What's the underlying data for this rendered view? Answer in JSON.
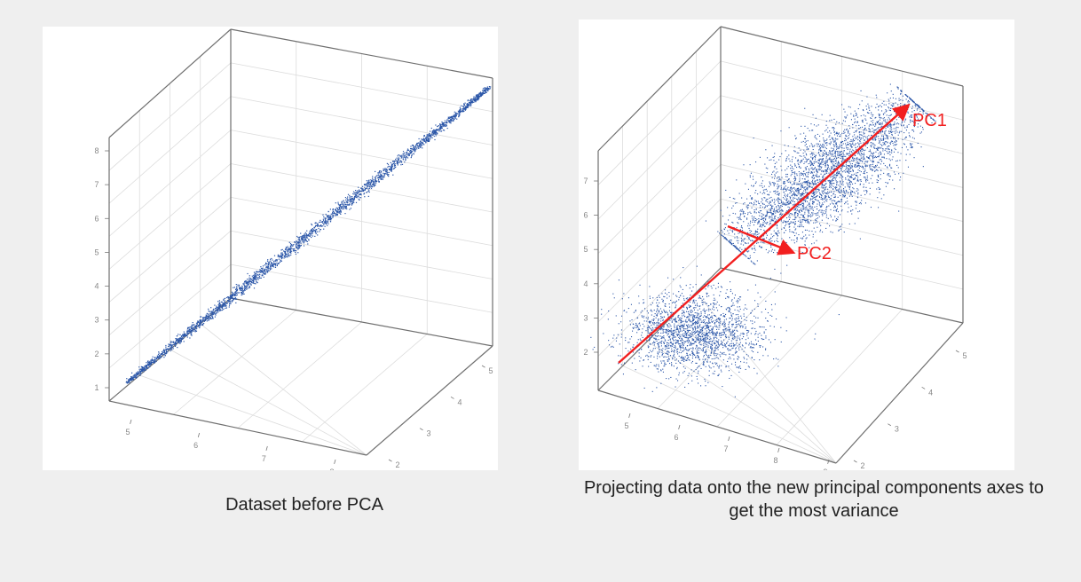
{
  "captions": {
    "left": "Dataset before PCA",
    "right": "Projecting data onto the new principal components axes to get the most variance"
  },
  "colors": {
    "points": "#2b56a8",
    "arrows": "#f21f1f",
    "grid": "#dcdcdc",
    "box": "#6f6f6f"
  },
  "chart_data": [
    {
      "type": "scatter",
      "subtype": "3d-scatter",
      "title": "",
      "xlabel": "",
      "ylabel": "",
      "zlabel": "",
      "x_ticks": [
        "5",
        "6",
        "7",
        "8"
      ],
      "y_ticks": [
        "2",
        "3",
        "4",
        "5"
      ],
      "z_ticks": [
        "1",
        "2",
        "3",
        "4",
        "5",
        "6",
        "7",
        "8"
      ],
      "grid": true,
      "series": [
        {
          "description_type": "linear-cluster",
          "x_range": [
            4.9,
            8.3
          ],
          "y_range": [
            2.0,
            5.2
          ],
          "z_range": [
            1.0,
            8.8
          ]
        }
      ]
    },
    {
      "type": "scatter",
      "subtype": "3d-scatter",
      "title": "",
      "xlabel": "",
      "ylabel": "",
      "zlabel": "",
      "x_ticks": [
        "5",
        "6",
        "7",
        "8",
        "9"
      ],
      "y_ticks": [
        "2",
        "3",
        "4",
        "5"
      ],
      "z_ticks": [
        "2",
        "3",
        "4",
        "5",
        "6",
        "7"
      ],
      "grid": true,
      "series": [
        {
          "description_type": "elongated-cluster",
          "x_range": [
            6.0,
            9.0
          ],
          "y_range": [
            2.5,
            5.0
          ],
          "z_range": [
            4.5,
            7.5
          ]
        },
        {
          "description_type": "round-cluster",
          "x_range": [
            4.9,
            6.8
          ],
          "y_range": [
            2.0,
            3.5
          ],
          "z_range": [
            2.0,
            3.5
          ]
        }
      ],
      "annotations": [
        {
          "label": "PC1",
          "type": "arrow"
        },
        {
          "label": "PC2",
          "type": "arrow"
        }
      ]
    }
  ]
}
